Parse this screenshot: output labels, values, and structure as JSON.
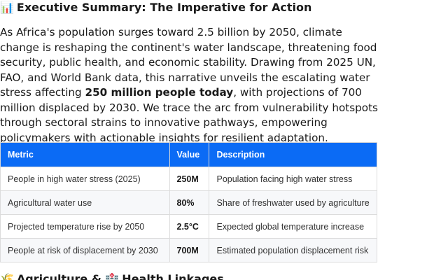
{
  "section1": {
    "icon": "📊",
    "title": "Executive Summary: The Imperative for Action"
  },
  "intro": {
    "text_before": "As Africa's population surges toward 2.5 billion by 2050, climate change is reshaping the continent's water landscape, threatening food security, public health, and economic stability. Drawing from 2025 UN, FAO, and World Bank data, this narrative unveils the escalating water stress affecting ",
    "text_bold": "250 million people today",
    "text_after": ", with projections of 700 million displaced by 2030. We trace the arc from vulnerability hotspots through sectoral strains to innovative pathways, empowering policymakers with actionable insights for resilient adaptation."
  },
  "table": {
    "headers": {
      "metric": "Metric",
      "value": "Value",
      "description": "Description"
    },
    "rows": [
      {
        "metric": "People in high water stress (2025)",
        "value": "250M",
        "description": "Population facing high water stress"
      },
      {
        "metric": "Agricultural water use",
        "value": "80%",
        "description": "Share of freshwater used by agriculture"
      },
      {
        "metric": "Projected temperature rise by 2050",
        "value": "2.5°C",
        "description": "Expected global temperature increase"
      },
      {
        "metric": "People at risk of displacement by 2030",
        "value": "700M",
        "description": "Estimated population displacement risk"
      }
    ]
  },
  "section2": {
    "icon_left": "🌾",
    "title_left": "Agriculture &",
    "icon_right": "🏥",
    "title_right": "Health Linkages"
  }
}
